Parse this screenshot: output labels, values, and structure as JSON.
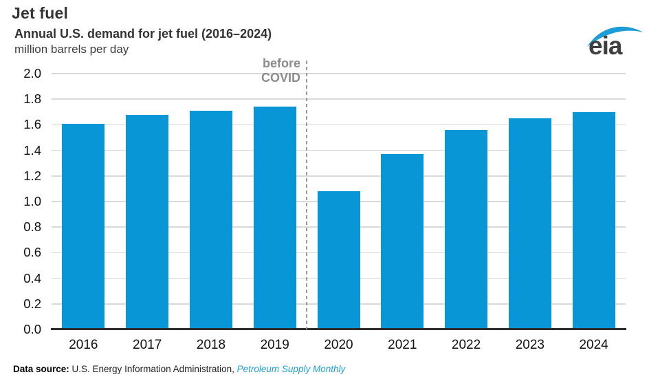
{
  "header": {
    "title": "Jet fuel",
    "subtitle": "Annual U.S. demand for jet fuel (2016–2024)",
    "units": "million barrels per day",
    "logo_text": "eia"
  },
  "annotation": {
    "line1": "before",
    "line2": "COVID"
  },
  "footer": {
    "label": "Data source:",
    "text": " U.S. Energy Information Administration, ",
    "link": "Petroleum Supply Monthly"
  },
  "colors": {
    "bar_blue": "#0996d6",
    "link_blue": "#1e9fd8",
    "annotation_gray": "#8c8c8c",
    "gridline_gray": "#d9d9d9",
    "axis_black": "#2b2b2b",
    "title_charcoal": "#333333",
    "logo_swoosh_blue": "#1e9cd7"
  },
  "chart_data": {
    "type": "bar",
    "title": "Annual U.S. demand for jet fuel (2016–2024)",
    "ylabel": "million barrels per day",
    "categories": [
      "2016",
      "2017",
      "2018",
      "2019",
      "2020",
      "2021",
      "2022",
      "2023",
      "2024"
    ],
    "values": [
      1.61,
      1.68,
      1.71,
      1.74,
      1.08,
      1.37,
      1.56,
      1.65,
      1.7
    ],
    "ylim": [
      0,
      2.0
    ],
    "ytick_step": 0.2,
    "ytick_labels": [
      "0.0",
      "0.2",
      "0.4",
      "0.6",
      "0.8",
      "1.0",
      "1.2",
      "1.4",
      "1.6",
      "1.8",
      "2.0"
    ],
    "grid": true,
    "legend": "none",
    "bar_color": "#0996d6",
    "divider": {
      "after_category": "2019",
      "label": "before COVID",
      "style": "dashed"
    }
  }
}
